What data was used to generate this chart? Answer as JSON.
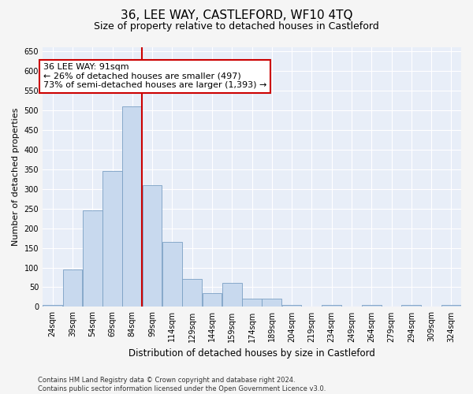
{
  "title": "36, LEE WAY, CASTLEFORD, WF10 4TQ",
  "subtitle": "Size of property relative to detached houses in Castleford",
  "xlabel": "Distribution of detached houses by size in Castleford",
  "ylabel": "Number of detached properties",
  "footer_line1": "Contains HM Land Registry data © Crown copyright and database right 2024.",
  "footer_line2": "Contains public sector information licensed under the Open Government Licence v3.0.",
  "annotation_line1": "36 LEE WAY: 91sqm",
  "annotation_line2": "← 26% of detached houses are smaller (497)",
  "annotation_line3": "73% of semi-detached houses are larger (1,393) →",
  "bar_color": "#c8d9ee",
  "bar_edge_color": "#7aa0c4",
  "vline_color": "#cc0000",
  "vline_x": 91.5,
  "background_color": "#e8eef8",
  "categories": [
    "24sqm",
    "39sqm",
    "54sqm",
    "69sqm",
    "84sqm",
    "99sqm",
    "114sqm",
    "129sqm",
    "144sqm",
    "159sqm",
    "174sqm",
    "189sqm",
    "204sqm",
    "219sqm",
    "234sqm",
    "249sqm",
    "264sqm",
    "279sqm",
    "294sqm",
    "309sqm",
    "324sqm"
  ],
  "bin_starts": [
    16.5,
    31.5,
    46.5,
    61.5,
    76.5,
    91.5,
    106.5,
    121.5,
    136.5,
    151.5,
    166.5,
    181.5,
    196.5,
    211.5,
    226.5,
    241.5,
    256.5,
    271.5,
    286.5,
    301.5,
    316.5
  ],
  "bin_width": 15,
  "values": [
    5,
    95,
    245,
    345,
    510,
    310,
    165,
    70,
    35,
    60,
    20,
    20,
    5,
    0,
    5,
    0,
    5,
    0,
    5,
    0,
    5
  ],
  "ylim": [
    0,
    660
  ],
  "yticks": [
    0,
    50,
    100,
    150,
    200,
    250,
    300,
    350,
    400,
    450,
    500,
    550,
    600,
    650
  ],
  "grid_color": "#ffffff",
  "title_fontsize": 11,
  "subtitle_fontsize": 9,
  "annotation_fontsize": 8,
  "ylabel_fontsize": 8,
  "xlabel_fontsize": 8.5,
  "tick_fontsize": 7,
  "footer_fontsize": 6
}
